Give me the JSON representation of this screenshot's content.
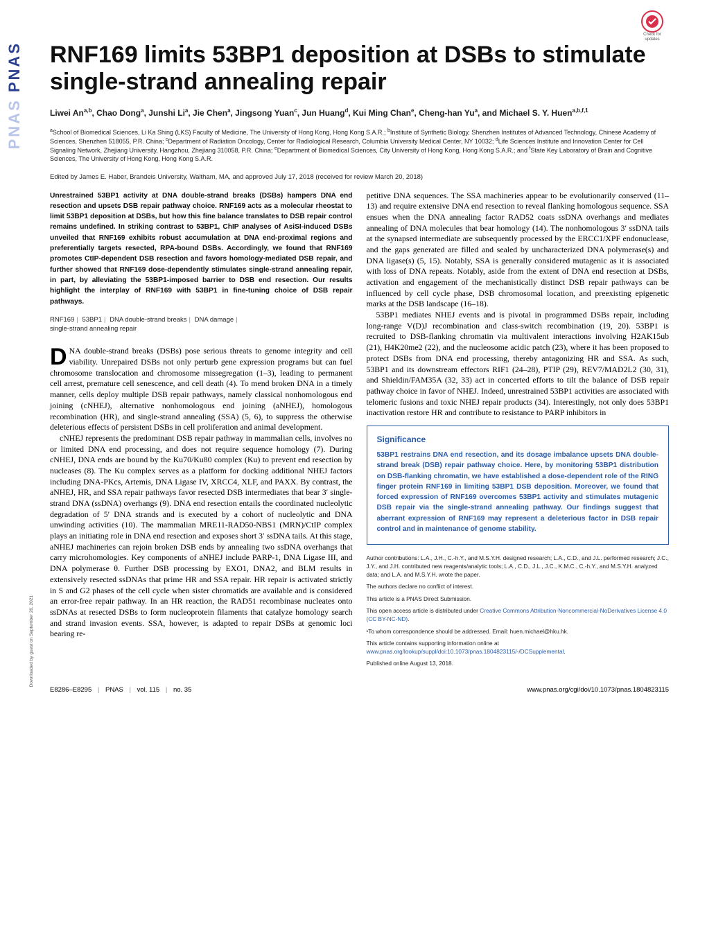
{
  "check_updates": {
    "label1": "Check for",
    "label2": "updates"
  },
  "sidebar_logo": {
    "main": "PNAS",
    "shadow": "PNAS"
  },
  "title": "RNF169 limits 53BP1 deposition at DSBs to stimulate single-strand annealing repair",
  "authors_html": "Liwei An<sup>a,b</sup>, Chao Dong<sup>a</sup>, Junshi Li<sup>a</sup>, Jie Chen<sup>a</sup>, Jingsong Yuan<sup>c</sup>, Jun Huang<sup>d</sup>, Kui Ming Chan<sup>e</sup>, Cheng-han Yu<sup>a</sup>, and Michael S. Y. Huen<sup>a,b,f,1</sup>",
  "affiliations_html": "<sup>a</sup>School of Biomedical Sciences, Li Ka Shing (LKS) Faculty of Medicine, The University of Hong Kong, Hong Kong S.A.R.; <sup>b</sup>Institute of Synthetic Biology, Shenzhen Institutes of Advanced Technology, Chinese Academy of Sciences, Shenzhen 518055, P.R. China; <sup>c</sup>Department of Radiation Oncology, Center for Radiological Research, Columbia University Medical Center, NY 10032; <sup>d</sup>Life Sciences Institute and Innovation Center for Cell Signaling Network, Zhejiang University, Hangzhou, Zhejiang 310058, P.R. China; <sup>e</sup>Department of Biomedical Sciences, City University of Hong Kong, Hong Kong S.A.R.; and <sup>f</sup>State Key Laboratory of Brain and Cognitive Sciences, The University of Hong Kong, Hong Kong S.A.R.",
  "edited": "Edited by James E. Haber, Brandeis University, Waltham, MA, and approved July 17, 2018 (received for review March 20, 2018)",
  "abstract": "Unrestrained 53BP1 activity at DNA double-strand breaks (DSBs) hampers DNA end resection and upsets DSB repair pathway choice. RNF169 acts as a molecular rheostat to limit 53BP1 deposition at DSBs, but how this fine balance translates to DSB repair control remains undefined. In striking contrast to 53BP1, ChIP analyses of AsiSI-induced DSBs unveiled that RNF169 exhibits robust accumulation at DNA end-proximal regions and preferentially targets resected, RPA-bound DSBs. Accordingly, we found that RNF169 promotes CtIP-dependent DSB resection and favors homology-mediated DSB repair, and further showed that RNF169 dose-dependently stimulates single-strand annealing repair, in part, by alleviating the 53BP1-imposed barrier to DSB end resection. Our results highlight the interplay of RNF169 with 53BP1 in fine-tuning choice of DSB repair pathways.",
  "keywords": [
    "RNF169",
    "53BP1",
    "DNA double-strand breaks",
    "DNA damage",
    "single-strand annealing repair"
  ],
  "body_left_p1": "NA double-strand breaks (DSBs) pose serious threats to genome integrity and cell viability. Unrepaired DSBs not only perturb gene expression programs but can fuel chromosome translocation and chromosome missegregation (1–3), leading to permanent cell arrest, premature cell senescence, and cell death (4). To mend broken DNA in a timely manner, cells deploy multiple DSB repair pathways, namely classical nonhomologous end joining (cNHEJ), alternative nonhomologous end joining (aNHEJ), homologous recombination (HR), and single-strand annealing (SSA) (5, 6), to suppress the otherwise deleterious effects of persistent DSBs in cell proliferation and animal development.",
  "body_left_p2": "cNHEJ represents the predominant DSB repair pathway in mammalian cells, involves no or limited DNA end processing, and does not require sequence homology (7). During cNHEJ, DNA ends are bound by the Ku70/Ku80 complex (Ku) to prevent end resection by nucleases (8). The Ku complex serves as a platform for docking additional NHEJ factors including DNA-PKcs, Artemis, DNA Ligase IV, XRCC4, XLF, and PAXX. By contrast, the aNHEJ, HR, and SSA repair pathways favor resected DSB intermediates that bear 3′ single-strand DNA (ssDNA) overhangs (9). DNA end resection entails the coordinated nucleolytic degradation of 5′ DNA strands and is executed by a cohort of nucleolytic and DNA unwinding activities (10). The mammalian MRE11-RAD50-NBS1 (MRN)/CtIP complex plays an initiating role in DNA end resection and exposes short 3′ ssDNA tails. At this stage, aNHEJ machineries can rejoin broken DSB ends by annealing two ssDNA overhangs that carry microhomologies. Key components of aNHEJ include PARP-1, DNA Ligase III, and DNA polymerase θ. Further DSB processing by EXO1, DNA2, and BLM results in extensively resected ssDNAs that prime HR and SSA repair. HR repair is activated strictly in S and G2 phases of the cell cycle when sister chromatids are available and is considered an error-free repair pathway. In an HR reaction, the RAD51 recombinase nucleates onto ssDNAs at resected DSBs to form nucleoprotein filaments that catalyze homology search and strand invasion events. SSA, however, is adapted to repair DSBs at genomic loci bearing re-",
  "body_right_p1": "petitive DNA sequences. The SSA machineries appear to be evolutionarily conserved (11–13) and require extensive DNA end resection to reveal flanking homologous sequence. SSA ensues when the DNA annealing factor RAD52 coats ssDNA overhangs and mediates annealing of DNA molecules that bear homology (14). The nonhomologous 3′ ssDNA tails at the synapsed intermediate are subsequently processed by the ERCC1/XPF endonuclease, and the gaps generated are filled and sealed by uncharacterized DNA polymerase(s) and DNA ligase(s) (5, 15). Notably, SSA is generally considered mutagenic as it is associated with loss of DNA repeats. Notably, aside from the extent of DNA end resection at DSBs, activation and engagement of the mechanistically distinct DSB repair pathways can be influenced by cell cycle phase, DSB chromosomal location, and preexisting epigenetic marks at the DSB landscape (16–18).",
  "body_right_p2": "53BP1 mediates NHEJ events and is pivotal in programmed DSBs repair, including long-range V(D)J recombination and class-switch recombination (19, 20). 53BP1 is recruited to DSB-flanking chromatin via multivalent interactions involving H2AK15ub (21), H4K20me2 (22), and the nucleosome acidic patch (23), where it has been proposed to protect DSBs from DNA end processing, thereby antagonizing HR and SSA. As such, 53BP1 and its downstream effectors RIF1 (24–28), PTIP (29), REV7/MAD2L2 (30, 31), and Shieldin/FAM35A (32, 33) act in concerted efforts to tilt the balance of DSB repair pathway choice in favor of NHEJ. Indeed, unrestrained 53BP1 activities are associated with telomeric fusions and toxic NHEJ repair products (34). Interestingly, not only does 53BP1 inactivation restore HR and contribute to resistance to PARP inhibitors in",
  "significance": {
    "heading": "Significance",
    "body": "53BP1 restrains DNA end resection, and its dosage imbalance upsets DNA double-strand break (DSB) repair pathway choice. Here, by monitoring 53BP1 distribution on DSB-flanking chromatin, we have established a dose-dependent role of the RING finger protein RNF169 in limiting 53BP1 DSB deposition. Moreover, we found that forced expression of RNF169 overcomes 53BP1 activity and stimulates mutagenic DSB repair via the single-strand annealing pathway. Our findings suggest that aberrant expression of RNF169 may represent a deleterious factor in DSB repair control and in maintenance of genome stability."
  },
  "meta": {
    "author_contrib": "Author contributions: L.A., J.H., C.-h.Y., and M.S.Y.H. designed research; L.A., C.D., and J.L. performed research; J.C., J.Y., and J.H. contributed new reagents/analytic tools; L.A., C.D., J.L., J.C., K.M.C., C.-h.Y., and M.S.Y.H. analyzed data; and L.A. and M.S.Y.H. wrote the paper.",
    "conflict": "The authors declare no conflict of interest.",
    "submission": "This article is a PNAS Direct Submission.",
    "license_pre": "This open access article is distributed under ",
    "license_link": "Creative Commons Attribution-Noncommercial-NoDerivatives License 4.0 (CC BY-NC-ND)",
    "license_post": ".",
    "correspondence": "¹To whom correspondence should be addressed. Email: huen.michael@hku.hk.",
    "supp_pre": "This article contains supporting information online at ",
    "supp_link": "www.pnas.org/lookup/suppl/doi:10.1073/pnas.1804823115/-/DCSupplemental",
    "supp_post": ".",
    "published": "Published online August 13, 2018."
  },
  "footer": {
    "pages": "E8286–E8295",
    "journal": "PNAS",
    "vol": "vol. 115",
    "no": "no. 35",
    "doi": "www.pnas.org/cgi/doi/10.1073/pnas.1804823115"
  },
  "downloaded": "Downloaded by guest on September 26, 2021",
  "colors": {
    "link": "#2a5caa",
    "sig_border": "#2a5caa",
    "text": "#000000",
    "logo": "#2a3f8f"
  }
}
